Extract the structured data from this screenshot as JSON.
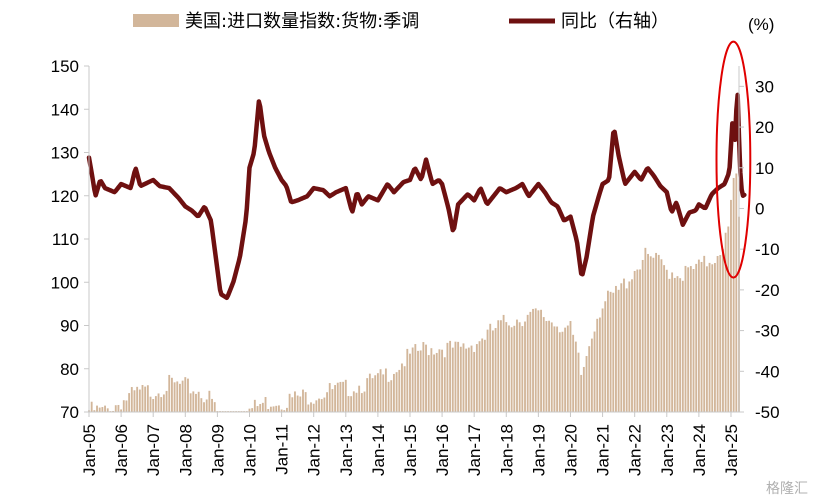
{
  "chart_data": {
    "type": "bar+line",
    "legend": {
      "bar_label": "美国:进口数量指数:货物:季调",
      "line_label": "同比（右轴）",
      "placement": "top"
    },
    "y_left": {
      "min": 70,
      "max": 150,
      "ticks": [
        70,
        80,
        90,
        100,
        110,
        120,
        130,
        140,
        150
      ]
    },
    "y_right": {
      "unit_label": "(%)",
      "min": -50,
      "max": 35,
      "ticks": [
        -50,
        -40,
        -30,
        -20,
        -10,
        0,
        10,
        20,
        30
      ]
    },
    "x_tick_labels": [
      "Jan-05",
      "Jan-06",
      "Jan-07",
      "Jan-08",
      "Jan-09",
      "Jan-10",
      "Jan-11",
      "Jan-12",
      "Jan-13",
      "Jan-14",
      "Jan-15",
      "Jan-16",
      "Jan-17",
      "Jan-18",
      "Jan-19",
      "Jan-20",
      "Jan-21",
      "Jan-22",
      "Jan-23",
      "Jan-24",
      "Jan-25"
    ],
    "x_start": "2005-01",
    "x_end": "2025-04",
    "bar_anchors": [
      [
        2005.0,
        71.5
      ],
      [
        2005.5,
        71.2
      ],
      [
        2006.0,
        73.5
      ],
      [
        2006.5,
        75.5
      ],
      [
        2007.0,
        76.0
      ],
      [
        2007.5,
        77.5
      ],
      [
        2008.0,
        77.0
      ],
      [
        2008.4,
        76.0
      ],
      [
        2008.8,
        74.0
      ],
      [
        2009.0,
        71.0
      ],
      [
        2009.3,
        70.3
      ],
      [
        2009.8,
        70.5
      ],
      [
        2010.0,
        71.5
      ],
      [
        2010.4,
        73.0
      ],
      [
        2010.8,
        74.0
      ],
      [
        2011.0,
        73.5
      ],
      [
        2011.5,
        74.5
      ],
      [
        2012.0,
        75.0
      ],
      [
        2012.5,
        76.0
      ],
      [
        2013.0,
        76.5
      ],
      [
        2013.5,
        77.5
      ],
      [
        2014.0,
        78.5
      ],
      [
        2014.5,
        81.0
      ],
      [
        2015.0,
        84.0
      ],
      [
        2015.5,
        86.0
      ],
      [
        2016.0,
        86.0
      ],
      [
        2016.5,
        85.5
      ],
      [
        2017.0,
        87.0
      ],
      [
        2017.5,
        89.5
      ],
      [
        2018.0,
        92.0
      ],
      [
        2018.5,
        93.0
      ],
      [
        2019.0,
        93.5
      ],
      [
        2019.5,
        92.0
      ],
      [
        2020.0,
        90.0
      ],
      [
        2020.2,
        85.0
      ],
      [
        2020.35,
        79.0
      ],
      [
        2020.55,
        86.0
      ],
      [
        2020.8,
        93.0
      ],
      [
        2021.0,
        96.0
      ],
      [
        2021.5,
        99.0
      ],
      [
        2022.0,
        104.0
      ],
      [
        2022.3,
        107.0
      ],
      [
        2022.7,
        106.0
      ],
      [
        2023.0,
        104.0
      ],
      [
        2023.5,
        103.0
      ],
      [
        2024.0,
        104.5
      ],
      [
        2024.5,
        107.0
      ],
      [
        2024.9,
        112.0
      ],
      [
        2025.05,
        122.0
      ],
      [
        2025.15,
        127.0
      ],
      [
        2025.25,
        116.0
      ]
    ],
    "line_anchors": [
      [
        2005.0,
        12.5
      ],
      [
        2005.1,
        8.0
      ],
      [
        2005.2,
        3.0
      ],
      [
        2005.35,
        7.0
      ],
      [
        2005.5,
        5.0
      ],
      [
        2005.8,
        4.0
      ],
      [
        2006.0,
        6.0
      ],
      [
        2006.3,
        5.0
      ],
      [
        2006.45,
        10.0
      ],
      [
        2006.6,
        5.5
      ],
      [
        2007.0,
        7.0
      ],
      [
        2007.2,
        5.5
      ],
      [
        2007.5,
        5.0
      ],
      [
        2007.8,
        2.5
      ],
      [
        2008.0,
        0.5
      ],
      [
        2008.2,
        -0.5
      ],
      [
        2008.4,
        -2.0
      ],
      [
        2008.6,
        0.5
      ],
      [
        2008.8,
        -3.0
      ],
      [
        2009.0,
        -15.0
      ],
      [
        2009.1,
        -21.0
      ],
      [
        2009.3,
        -22.0
      ],
      [
        2009.5,
        -18.0
      ],
      [
        2009.7,
        -12.0
      ],
      [
        2009.9,
        -2.0
      ],
      [
        2010.0,
        10.0
      ],
      [
        2010.15,
        14.0
      ],
      [
        2010.3,
        27.0
      ],
      [
        2010.45,
        18.0
      ],
      [
        2010.6,
        14.0
      ],
      [
        2010.8,
        10.0
      ],
      [
        2011.0,
        7.0
      ],
      [
        2011.15,
        5.5
      ],
      [
        2011.3,
        1.5
      ],
      [
        2011.5,
        2.0
      ],
      [
        2011.8,
        3.0
      ],
      [
        2012.0,
        5.0
      ],
      [
        2012.3,
        4.5
      ],
      [
        2012.5,
        3.0
      ],
      [
        2012.7,
        4.0
      ],
      [
        2013.0,
        5.0
      ],
      [
        2013.2,
        -1.0
      ],
      [
        2013.35,
        4.0
      ],
      [
        2013.5,
        1.0
      ],
      [
        2013.7,
        3.0
      ],
      [
        2014.0,
        2.0
      ],
      [
        2014.3,
        6.0
      ],
      [
        2014.5,
        4.0
      ],
      [
        2014.8,
        6.5
      ],
      [
        2015.0,
        7.0
      ],
      [
        2015.15,
        10.0
      ],
      [
        2015.35,
        7.0
      ],
      [
        2015.5,
        12.0
      ],
      [
        2015.7,
        6.0
      ],
      [
        2015.9,
        7.0
      ],
      [
        2016.0,
        6.0
      ],
      [
        2016.2,
        0.0
      ],
      [
        2016.35,
        -6.0
      ],
      [
        2016.5,
        1.0
      ],
      [
        2016.8,
        3.5
      ],
      [
        2017.0,
        2.0
      ],
      [
        2017.2,
        5.0
      ],
      [
        2017.4,
        1.0
      ],
      [
        2017.6,
        3.0
      ],
      [
        2017.8,
        5.0
      ],
      [
        2018.0,
        4.0
      ],
      [
        2018.3,
        5.0
      ],
      [
        2018.5,
        6.0
      ],
      [
        2018.7,
        3.0
      ],
      [
        2019.0,
        6.0
      ],
      [
        2019.2,
        4.0
      ],
      [
        2019.4,
        1.5
      ],
      [
        2019.6,
        0.5
      ],
      [
        2019.8,
        -3.0
      ],
      [
        2020.0,
        -2.0
      ],
      [
        2020.2,
        -8.0
      ],
      [
        2020.35,
        -17.0
      ],
      [
        2020.5,
        -12.0
      ],
      [
        2020.7,
        -2.0
      ],
      [
        2020.9,
        3.5
      ],
      [
        2021.0,
        6.0
      ],
      [
        2021.2,
        7.0
      ],
      [
        2021.35,
        20.0
      ],
      [
        2021.5,
        13.0
      ],
      [
        2021.7,
        6.0
      ],
      [
        2022.0,
        9.0
      ],
      [
        2022.2,
        7.0
      ],
      [
        2022.4,
        10.0
      ],
      [
        2022.6,
        8.0
      ],
      [
        2022.8,
        5.5
      ],
      [
        2023.0,
        4.0
      ],
      [
        2023.15,
        -1.0
      ],
      [
        2023.3,
        1.5
      ],
      [
        2023.5,
        -4.0
      ],
      [
        2023.7,
        -1.0
      ],
      [
        2023.9,
        -0.5
      ],
      [
        2024.0,
        1.0
      ],
      [
        2024.2,
        0.0
      ],
      [
        2024.4,
        3.5
      ],
      [
        2024.6,
        5.0
      ],
      [
        2024.8,
        6.0
      ],
      [
        2024.95,
        9.0
      ],
      [
        2025.05,
        22.0
      ],
      [
        2025.12,
        16.0
      ],
      [
        2025.2,
        30.0
      ],
      [
        2025.28,
        10.0
      ],
      [
        2025.35,
        3.0
      ],
      [
        2025.45,
        3.5
      ]
    ],
    "colors": {
      "bar": "#d2b69a",
      "line": "#6e1010",
      "highlight": "#e00000"
    },
    "highlight": {
      "shape": "ellipse",
      "region_years": [
        2024.55,
        2025.6
      ],
      "region_yoy": [
        -17,
        41
      ]
    },
    "grid": false
  },
  "watermark": "格隆汇"
}
